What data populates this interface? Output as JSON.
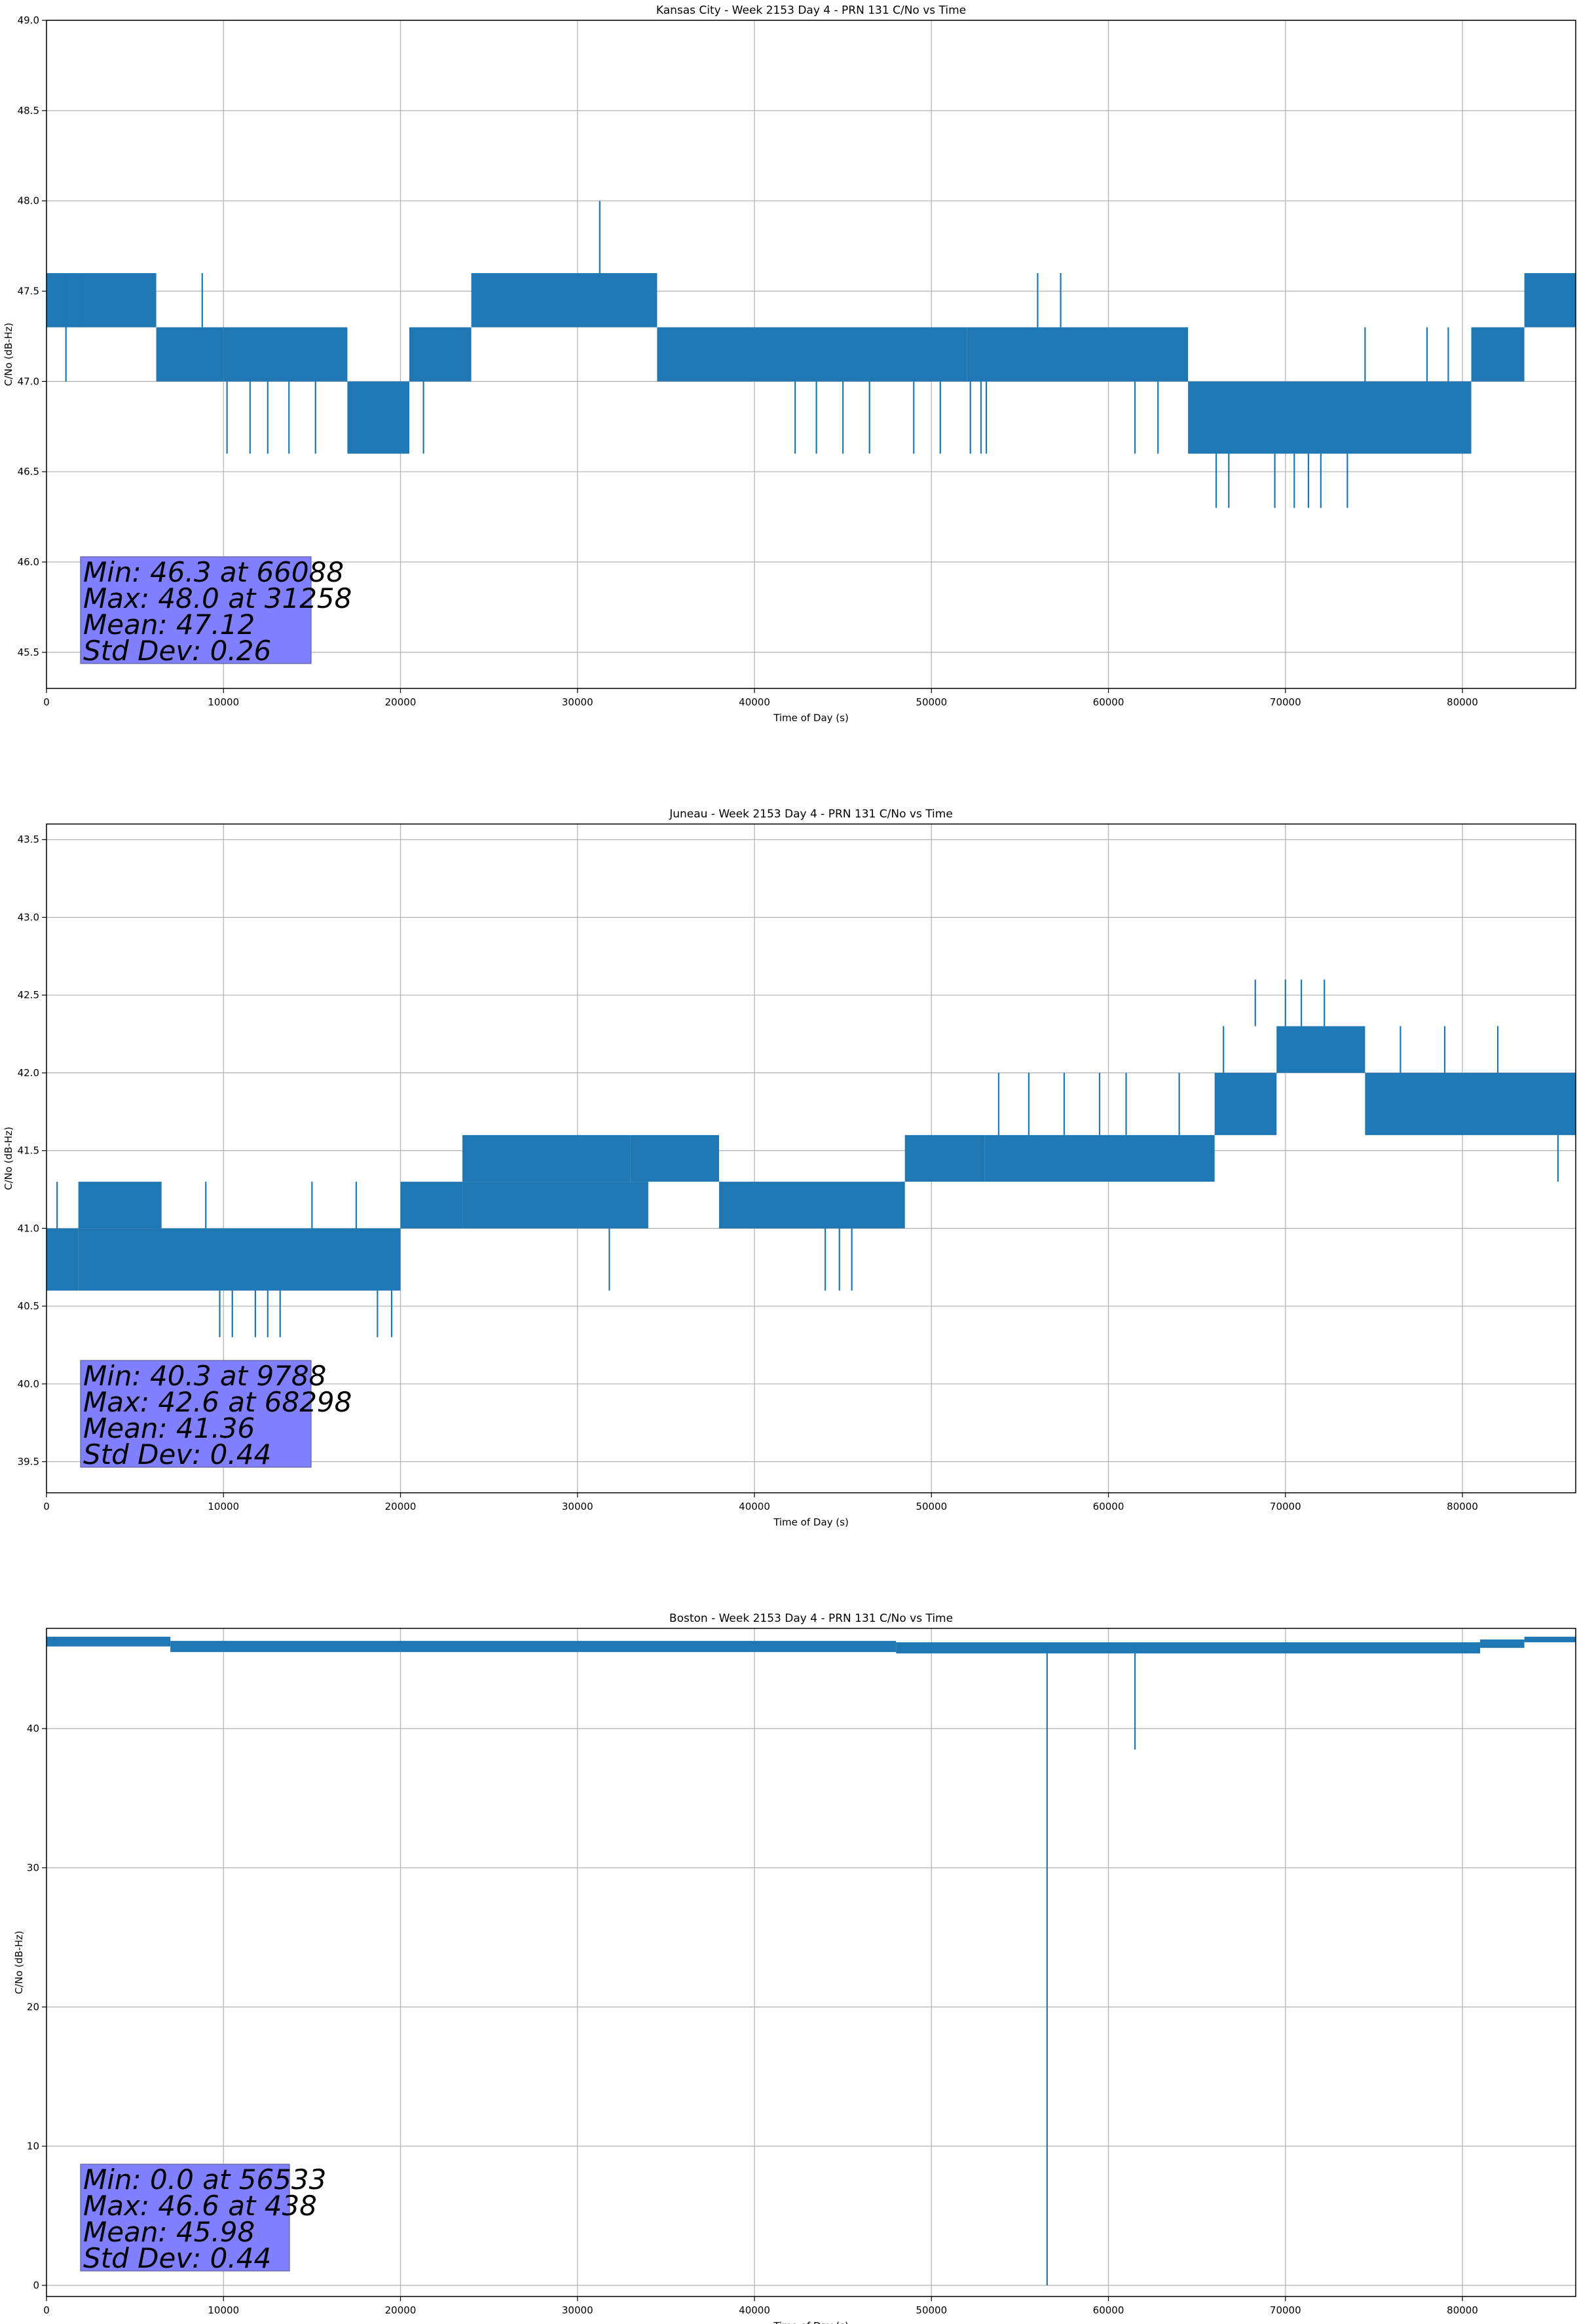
{
  "colors": {
    "series": "#1f77b4",
    "grid": "#b0b0b0",
    "stats_box": "#8080ff",
    "stats_box_edge": "#6060a0",
    "axes": "#000000"
  },
  "chart_data": [
    {
      "type": "line",
      "title": "Kansas City - Week 2153 Day 4 - PRN 131 C/No vs Time",
      "xlabel": "Time of Day (s)",
      "ylabel": "C/No (dB-Hz)",
      "xlim": [
        0,
        86400
      ],
      "ylim": [
        45.3,
        49.0
      ],
      "xticks": [
        0,
        10000,
        20000,
        30000,
        40000,
        50000,
        60000,
        70000,
        80000
      ],
      "xtick_labels": [
        "0",
        "10000",
        "20000",
        "30000",
        "40000",
        "50000",
        "60000",
        "70000",
        "80000"
      ],
      "yticks": [
        45.5,
        46.0,
        46.5,
        47.0,
        47.5,
        48.0,
        48.5,
        49.0
      ],
      "ytick_labels": [
        "45.5",
        "46.0",
        "46.5",
        "47.0",
        "47.5",
        "48.0",
        "48.5",
        "49.0"
      ],
      "grid": true,
      "series": [
        {
          "name": "PRN 131",
          "segments": [
            {
              "x": [
                0,
                6200
              ],
              "y": [
                47.3,
                47.6
              ]
            },
            {
              "x": [
                6200,
                10000
              ],
              "y": [
                47.0,
                47.3
              ]
            },
            {
              "x": [
                10000,
                17000
              ],
              "y": [
                47.0,
                47.3
              ]
            },
            {
              "x": [
                17000,
                20500
              ],
              "y": [
                46.6,
                47.0
              ]
            },
            {
              "x": [
                20500,
                24000
              ],
              "y": [
                47.0,
                47.3
              ]
            },
            {
              "x": [
                24000,
                34500
              ],
              "y": [
                47.3,
                47.6
              ]
            },
            {
              "x": [
                34500,
                52000
              ],
              "y": [
                47.0,
                47.3
              ]
            },
            {
              "x": [
                52000,
                64500
              ],
              "y": [
                47.0,
                47.3
              ]
            },
            {
              "x": [
                64500,
                80500
              ],
              "y": [
                46.6,
                47.0
              ]
            },
            {
              "x": [
                80500,
                83500
              ],
              "y": [
                47.0,
                47.3
              ]
            },
            {
              "x": [
                83500,
                86400
              ],
              "y": [
                47.3,
                47.6
              ]
            }
          ],
          "spikes": [
            {
              "x": 1100,
              "y": [
                47.0,
                47.6
              ]
            },
            {
              "x": 2000,
              "y": [
                47.3,
                47.6
              ]
            },
            {
              "x": 8800,
              "y": [
                47.3,
                47.6
              ]
            },
            {
              "x": 10200,
              "y": [
                46.6,
                47.0
              ]
            },
            {
              "x": 11500,
              "y": [
                46.6,
                47.0
              ]
            },
            {
              "x": 12500,
              "y": [
                46.6,
                47.0
              ]
            },
            {
              "x": 13700,
              "y": [
                46.6,
                47.0
              ]
            },
            {
              "x": 15200,
              "y": [
                46.6,
                47.0
              ]
            },
            {
              "x": 21300,
              "y": [
                46.6,
                47.0
              ]
            },
            {
              "x": 31258,
              "y": [
                47.6,
                48.0
              ]
            },
            {
              "x": 42300,
              "y": [
                46.6,
                47.0
              ]
            },
            {
              "x": 43500,
              "y": [
                46.6,
                47.0
              ]
            },
            {
              "x": 45000,
              "y": [
                46.6,
                47.0
              ]
            },
            {
              "x": 46500,
              "y": [
                46.6,
                47.0
              ]
            },
            {
              "x": 49000,
              "y": [
                46.6,
                47.0
              ]
            },
            {
              "x": 50500,
              "y": [
                46.6,
                47.0
              ]
            },
            {
              "x": 52200,
              "y": [
                46.6,
                47.0
              ]
            },
            {
              "x": 52800,
              "y": [
                46.6,
                47.0
              ]
            },
            {
              "x": 53100,
              "y": [
                46.6,
                47.0
              ]
            },
            {
              "x": 56000,
              "y": [
                47.3,
                47.6
              ]
            },
            {
              "x": 57300,
              "y": [
                47.3,
                47.6
              ]
            },
            {
              "x": 61500,
              "y": [
                46.6,
                47.0
              ]
            },
            {
              "x": 62800,
              "y": [
                46.6,
                47.0
              ]
            },
            {
              "x": 66088,
              "y": [
                46.3,
                46.6
              ]
            },
            {
              "x": 66800,
              "y": [
                46.3,
                46.6
              ]
            },
            {
              "x": 69400,
              "y": [
                46.3,
                46.6
              ]
            },
            {
              "x": 70500,
              "y": [
                46.3,
                46.6
              ]
            },
            {
              "x": 71300,
              "y": [
                46.3,
                46.6
              ]
            },
            {
              "x": 72000,
              "y": [
                46.3,
                46.6
              ]
            },
            {
              "x": 73500,
              "y": [
                46.3,
                46.6
              ]
            },
            {
              "x": 74500,
              "y": [
                47.0,
                47.3
              ]
            },
            {
              "x": 78000,
              "y": [
                47.0,
                47.3
              ]
            },
            {
              "x": 79200,
              "y": [
                47.0,
                47.3
              ]
            }
          ]
        }
      ],
      "stats": [
        "Min: 46.3 at 66088",
        "Max: 48.0 at 31258",
        "Mean: 47.12",
        "Std Dev: 0.26"
      ]
    },
    {
      "type": "line",
      "title": "Juneau - Week 2153 Day 4 - PRN 131 C/No vs Time",
      "xlabel": "Time of Day (s)",
      "ylabel": "C/No (dB-Hz)",
      "xlim": [
        0,
        86400
      ],
      "ylim": [
        39.3,
        43.6
      ],
      "xticks": [
        0,
        10000,
        20000,
        30000,
        40000,
        50000,
        60000,
        70000,
        80000
      ],
      "xtick_labels": [
        "0",
        "10000",
        "20000",
        "30000",
        "40000",
        "50000",
        "60000",
        "70000",
        "80000"
      ],
      "yticks": [
        39.5,
        40.0,
        40.5,
        41.0,
        41.5,
        42.0,
        42.5,
        43.0,
        43.5
      ],
      "ytick_labels": [
        "39.5",
        "40.0",
        "40.5",
        "41.0",
        "41.5",
        "42.0",
        "42.5",
        "43.0",
        "43.5"
      ],
      "grid": true,
      "series": [
        {
          "name": "PRN 131",
          "segments": [
            {
              "x": [
                0,
                1800
              ],
              "y": [
                40.6,
                41.0
              ]
            },
            {
              "x": [
                1800,
                6500
              ],
              "y": [
                41.0,
                41.3
              ]
            },
            {
              "x": [
                1800,
                20000
              ],
              "y": [
                40.6,
                41.0
              ]
            },
            {
              "x": [
                20000,
                23500
              ],
              "y": [
                41.0,
                41.3
              ]
            },
            {
              "x": [
                23500,
                33000
              ],
              "y": [
                41.3,
                41.6
              ]
            },
            {
              "x": [
                23500,
                34000
              ],
              "y": [
                41.0,
                41.3
              ]
            },
            {
              "x": [
                33000,
                38000
              ],
              "y": [
                41.3,
                41.6
              ]
            },
            {
              "x": [
                38000,
                48500
              ],
              "y": [
                41.0,
                41.3
              ]
            },
            {
              "x": [
                48500,
                53000
              ],
              "y": [
                41.3,
                41.6
              ]
            },
            {
              "x": [
                53000,
                66000
              ],
              "y": [
                41.3,
                41.6
              ]
            },
            {
              "x": [
                66000,
                69500
              ],
              "y": [
                41.6,
                42.0
              ]
            },
            {
              "x": [
                69500,
                74500
              ],
              "y": [
                42.0,
                42.3
              ]
            },
            {
              "x": [
                74500,
                86400
              ],
              "y": [
                41.6,
                42.0
              ]
            }
          ],
          "spikes": [
            {
              "x": 600,
              "y": [
                41.0,
                41.3
              ]
            },
            {
              "x": 9000,
              "y": [
                41.0,
                41.3
              ]
            },
            {
              "x": 9788,
              "y": [
                40.3,
                40.6
              ]
            },
            {
              "x": 10500,
              "y": [
                40.3,
                40.6
              ]
            },
            {
              "x": 11800,
              "y": [
                40.3,
                40.6
              ]
            },
            {
              "x": 12500,
              "y": [
                40.3,
                40.6
              ]
            },
            {
              "x": 13200,
              "y": [
                40.3,
                40.6
              ]
            },
            {
              "x": 15000,
              "y": [
                41.0,
                41.3
              ]
            },
            {
              "x": 17500,
              "y": [
                41.0,
                41.3
              ]
            },
            {
              "x": 18700,
              "y": [
                40.3,
                40.6
              ]
            },
            {
              "x": 19500,
              "y": [
                40.3,
                40.6
              ]
            },
            {
              "x": 31800,
              "y": [
                40.6,
                41.0
              ]
            },
            {
              "x": 44000,
              "y": [
                40.6,
                41.0
              ]
            },
            {
              "x": 44800,
              "y": [
                40.6,
                41.0
              ]
            },
            {
              "x": 45500,
              "y": [
                40.6,
                41.0
              ]
            },
            {
              "x": 53800,
              "y": [
                41.6,
                42.0
              ]
            },
            {
              "x": 55500,
              "y": [
                41.6,
                42.0
              ]
            },
            {
              "x": 57500,
              "y": [
                41.6,
                42.0
              ]
            },
            {
              "x": 59500,
              "y": [
                41.6,
                42.0
              ]
            },
            {
              "x": 61000,
              "y": [
                41.6,
                42.0
              ]
            },
            {
              "x": 64000,
              "y": [
                41.6,
                42.0
              ]
            },
            {
              "x": 66500,
              "y": [
                42.0,
                42.3
              ]
            },
            {
              "x": 68298,
              "y": [
                42.3,
                42.6
              ]
            },
            {
              "x": 70000,
              "y": [
                42.3,
                42.6
              ]
            },
            {
              "x": 70900,
              "y": [
                42.3,
                42.6
              ]
            },
            {
              "x": 72200,
              "y": [
                42.3,
                42.6
              ]
            },
            {
              "x": 76500,
              "y": [
                42.0,
                42.3
              ]
            },
            {
              "x": 79000,
              "y": [
                42.0,
                42.3
              ]
            },
            {
              "x": 82000,
              "y": [
                42.0,
                42.3
              ]
            },
            {
              "x": 85400,
              "y": [
                41.3,
                41.6
              ]
            }
          ]
        }
      ],
      "stats": [
        "Min: 40.3 at 9788",
        "Max: 42.6 at 68298",
        "Mean: 41.36",
        "Std Dev: 0.44"
      ]
    },
    {
      "type": "line",
      "title": "Boston - Week 2153 Day 4 - PRN 131 C/No vs Time",
      "xlabel": "Time of Day (s)",
      "ylabel": "C/No (dB-Hz)",
      "xlim": [
        0,
        86400
      ],
      "ylim": [
        -0.8,
        47.2
      ],
      "xticks": [
        0,
        10000,
        20000,
        30000,
        40000,
        50000,
        60000,
        70000,
        80000
      ],
      "xtick_labels": [
        "0",
        "10000",
        "20000",
        "30000",
        "40000",
        "50000",
        "60000",
        "70000",
        "80000"
      ],
      "yticks": [
        0,
        10,
        20,
        30,
        40
      ],
      "ytick_labels": [
        "0",
        "10",
        "20",
        "30",
        "40"
      ],
      "grid": true,
      "series": [
        {
          "name": "PRN 131",
          "segments": [
            {
              "x": [
                0,
                7000
              ],
              "y": [
                45.9,
                46.6
              ]
            },
            {
              "x": [
                7000,
                48000
              ],
              "y": [
                45.5,
                46.3
              ]
            },
            {
              "x": [
                48000,
                81000
              ],
              "y": [
                45.4,
                46.2
              ]
            },
            {
              "x": [
                81000,
                83500
              ],
              "y": [
                45.8,
                46.4
              ]
            },
            {
              "x": [
                83500,
                86400
              ],
              "y": [
                46.2,
                46.6
              ]
            }
          ],
          "spikes": [
            {
              "x": 56533,
              "y": [
                0.0,
                45.8
              ]
            },
            {
              "x": 61500,
              "y": [
                38.5,
                45.8
              ]
            },
            {
              "x": 438,
              "y": [
                45.9,
                46.6
              ]
            }
          ]
        }
      ],
      "stats": [
        "Min: 0.0 at 56533",
        "Max: 46.6 at 438",
        "Mean: 45.98",
        "Std Dev: 0.44"
      ]
    }
  ]
}
